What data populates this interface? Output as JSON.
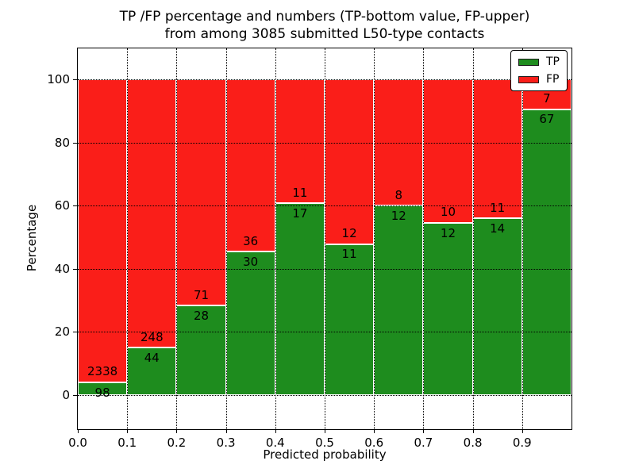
{
  "figure": {
    "title_line1": "TP /FP percentage and numbers (TP-bottom value, FP-upper)",
    "title_line2": "from among 3085 submitted L50-type contacts"
  },
  "legend": {
    "items": [
      {
        "label": "TP",
        "color": "#1e8c1e"
      },
      {
        "label": "FP",
        "color": "#fa1e19"
      }
    ]
  },
  "chart_data": {
    "type": "bar",
    "stacked": true,
    "normalized_to_percent": true,
    "title": "TP /FP percentage and numbers (TP-bottom value, FP-upper) from among 3085 submitted L50-type contacts",
    "xlabel": "Predicted probability",
    "ylabel": "Percentage",
    "total_contacts": 3085,
    "bin_edges": [
      0.0,
      0.1,
      0.2,
      0.3,
      0.4,
      0.5,
      0.6,
      0.7,
      0.8,
      0.9,
      1.0
    ],
    "series": [
      {
        "name": "TP",
        "color": "#1e8c1e",
        "counts": [
          98,
          44,
          28,
          30,
          17,
          11,
          12,
          12,
          14,
          67
        ]
      },
      {
        "name": "FP",
        "color": "#fa1e19",
        "counts": [
          2338,
          248,
          71,
          36,
          11,
          12,
          8,
          10,
          11,
          7
        ]
      }
    ],
    "tp_percentages": [
      4.02,
      15.07,
      28.28,
      45.45,
      60.71,
      47.83,
      60.0,
      54.55,
      56.0,
      90.54
    ],
    "x_ticks": [
      "0.0",
      "0.1",
      "0.2",
      "0.3",
      "0.4",
      "0.5",
      "0.6",
      "0.7",
      "0.8",
      "0.9"
    ],
    "y_ticks": [
      0,
      20,
      40,
      60,
      80,
      100
    ],
    "xlim": [
      0.0,
      1.0
    ],
    "ylim": [
      -10.8,
      109.8
    ],
    "grid": "dotted",
    "legend_position": "upper right"
  }
}
